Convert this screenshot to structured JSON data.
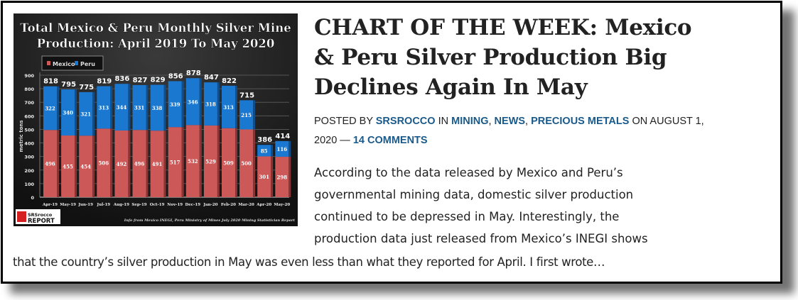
{
  "post": {
    "title": "CHART OF THE WEEK: Mexico & Peru Silver Production Big Declines Again In May",
    "meta": {
      "posted_by_label": "POSTED BY",
      "author": "SRSROCCO",
      "in_label": "IN",
      "categories": [
        "MINING",
        "NEWS",
        "PRECIOUS METALS"
      ],
      "on_label": "ON",
      "date": "AUGUST 1, 2020",
      "separator": "—",
      "comments": "14 COMMENTS"
    },
    "excerpt_lines": [
      "According to the data released by Mexico and Peru’s",
      "governmental mining data, domestic silver production",
      "continued to be depressed in May.  Interestingly, the",
      "production data just released from Mexico’s INEGI shows"
    ],
    "excerpt_last_line": "that the country’s silver production in May was even less than what they reported for April. I first wrote…"
  },
  "chart_data": {
    "type": "bar",
    "stacked": true,
    "title": "Total Mexico & Peru Monthly Silver Mine Production: April 2019 To May 2020",
    "title_lines": [
      "Total Mexico & Peru Monthly Silver Mine",
      "Production: April 2019 To May 2020"
    ],
    "xlabel": "",
    "ylabel": "metric tons",
    "ylim": [
      0,
      900
    ],
    "yticks": [
      0,
      100,
      200,
      300,
      400,
      500,
      600,
      700,
      800,
      900
    ],
    "grid": true,
    "legend": "top-left",
    "categories": [
      "Apr-19",
      "May-19",
      "Jun-19",
      "Jul-19",
      "Aug-19",
      "Sep-19",
      "Oct-19",
      "Nov-19",
      "Dec-19",
      "Jan-20",
      "Feb-20",
      "Mar-20",
      "Apr-20",
      "May-20"
    ],
    "series": [
      {
        "name": "Mexico",
        "color": "#cd5858",
        "values": [
          496,
          455,
          454,
          506,
          492,
          496,
          491,
          517,
          532,
          529,
          509,
          500,
          301,
          298
        ]
      },
      {
        "name": "Peru",
        "color": "#1a78d0",
        "values": [
          322,
          340,
          321,
          313,
          344,
          331,
          338,
          339,
          346,
          318,
          313,
          215,
          85,
          116
        ]
      }
    ],
    "totals": [
      818,
      795,
      775,
      819,
      836,
      827,
      829,
      856,
      878,
      847,
      822,
      715,
      386,
      414
    ],
    "source": "Info from Mexico INEGI, Peru Ministry of Mines July 2020 Mining Statistician Report",
    "logo": {
      "line1": "SRSrocco",
      "line2": "REPORT"
    }
  }
}
